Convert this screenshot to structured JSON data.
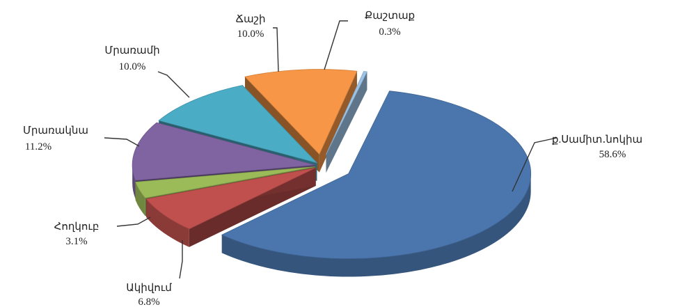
{
  "chart_data": {
    "type": "pie",
    "style": "3d-exploded",
    "title": "",
    "slices": [
      {
        "label": "ք.Սամիտ․նոկիա",
        "value": 58.6,
        "value_label": "58.6%",
        "color": "#4a76ad"
      },
      {
        "label": "Ակիվում",
        "value": 6.8,
        "value_label": "6.8%",
        "color": "#c0504d"
      },
      {
        "label": "Հողկուբ",
        "value": 3.1,
        "value_label": "3.1%",
        "color": "#9bbb59"
      },
      {
        "label": "Մրառակնա",
        "value": 11.2,
        "value_label": "11.2%",
        "color": "#8064a2"
      },
      {
        "label": "Մրառամի",
        "value": 10.0,
        "value_label": "10.0%",
        "color": "#4bacc6"
      },
      {
        "label": "Ճաշի",
        "value": 10.0,
        "value_label": "10.0%",
        "color": "#f79646"
      },
      {
        "label": "Քաշտաք",
        "value": 0.3,
        "value_label": "0.3%",
        "color": "#9dc3e6"
      }
    ],
    "legend": "none"
  }
}
